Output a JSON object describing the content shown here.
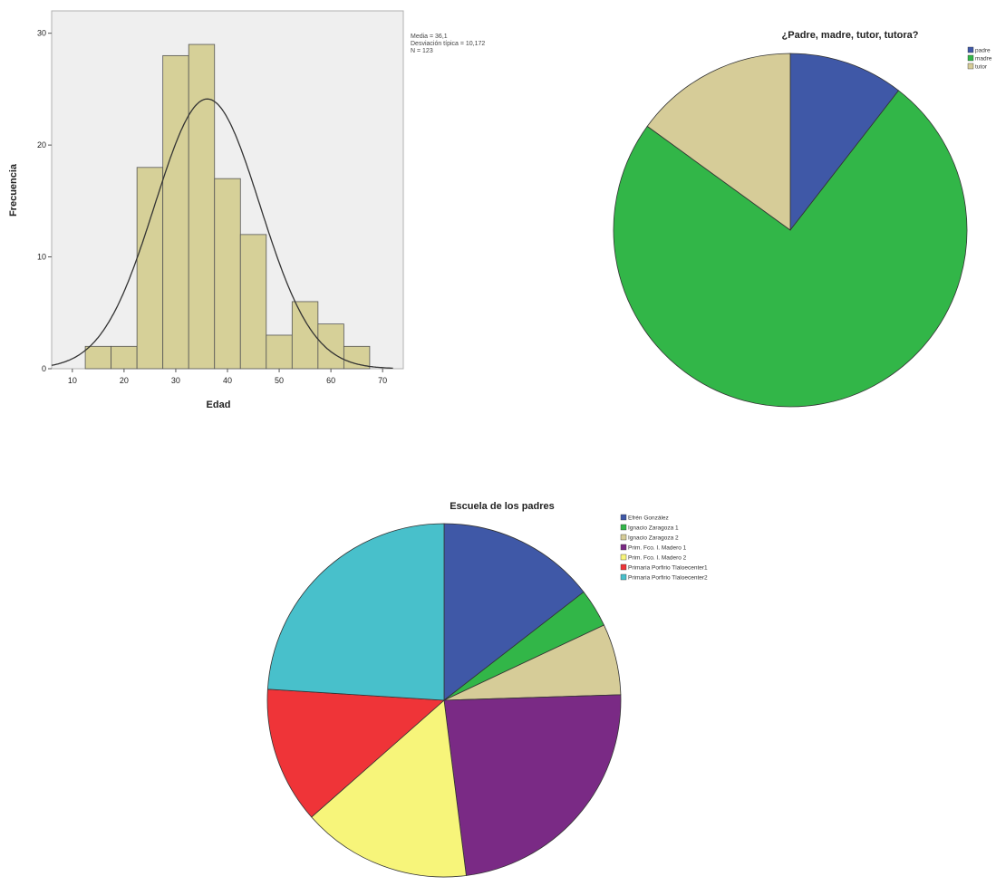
{
  "chart_data": [
    {
      "type": "bar",
      "subtype": "histogram",
      "title": "",
      "xlabel": "Edad",
      "ylabel": "Frecuencia",
      "xlim": [
        6,
        74
      ],
      "ylim": [
        0,
        32
      ],
      "bin_width": 5,
      "bin_starts": [
        12.5,
        17.5,
        22.5,
        27.5,
        32.5,
        37.5,
        42.5,
        47.5,
        52.5,
        57.5,
        62.5
      ],
      "values": [
        2,
        2,
        18,
        28,
        29,
        17,
        12,
        3,
        6,
        4,
        2
      ],
      "x_ticks": [
        "10",
        "20",
        "30",
        "40",
        "50",
        "60",
        "70"
      ],
      "y_ticks": [
        "0",
        "10",
        "20",
        "30"
      ],
      "normal_curve": {
        "mean": 36.1,
        "sd": 10.172
      },
      "stats": [
        "Media = 36,1",
        "Desviación típica = 10,172",
        "N = 123"
      ],
      "bar_color": "#d6d098",
      "plot_bg": "#efefef",
      "grid": false
    },
    {
      "type": "pie",
      "title": "¿Padre, madre, tutor, tutora?",
      "legend_position": "right",
      "labels": [
        "padre",
        "madre",
        "tutor"
      ],
      "values": [
        10.5,
        74.5,
        15.0
      ],
      "colors": [
        "#3f58a7",
        "#32b648",
        "#d6cc98"
      ]
    },
    {
      "type": "pie",
      "title": "Escuela de los padres",
      "legend_position": "right",
      "labels": [
        "Efrén González",
        "Ignacio Zaragoza 1",
        "Ignacio Zaragoza 2",
        "Prim. Fco. I. Madero 1",
        "Prim. Fco. I. Madero 2",
        "Primaria Porfirio Tlaloecenter1",
        "Primaria Porfirio Tlaloecenter2"
      ],
      "values": [
        14.5,
        3.5,
        6.5,
        23.5,
        15.5,
        12.5,
        24.0
      ],
      "colors": [
        "#3f58a7",
        "#32b648",
        "#d6cc98",
        "#7a2a85",
        "#f7f57a",
        "#ef3438",
        "#48c0cb"
      ]
    }
  ]
}
